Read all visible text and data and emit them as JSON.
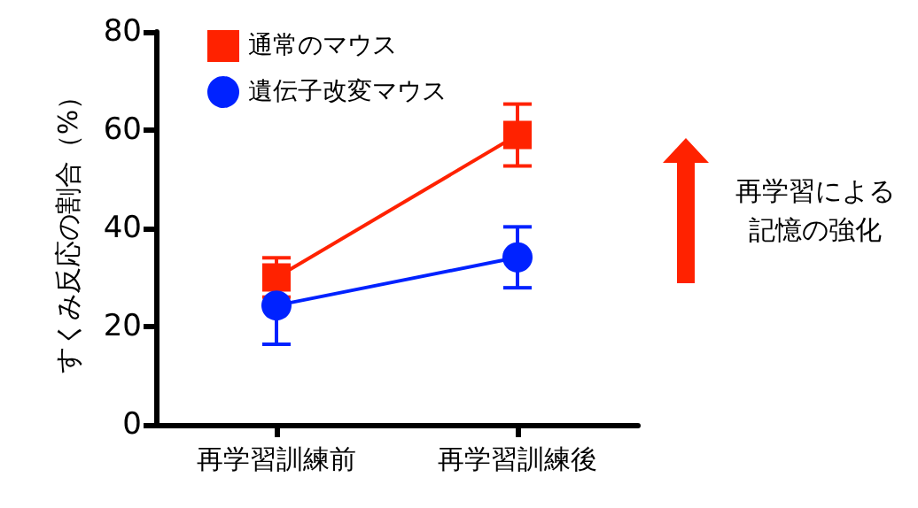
{
  "chart_data": {
    "type": "line",
    "ylabel": "すくみ反応の割合（%）",
    "categories": [
      "再学習訓練前",
      "再学習訓練後"
    ],
    "series": [
      {
        "name": "通常のマウス",
        "color": "#ff2200",
        "marker": "square",
        "values": [
          30,
          59
        ],
        "errors": [
          4,
          6.3
        ]
      },
      {
        "name": "遺伝子改変マウス",
        "color": "#0022ff",
        "marker": "circle",
        "values": [
          24.3,
          34.1
        ],
        "errors": [
          7.9,
          6.2
        ]
      }
    ],
    "ylim": [
      0,
      80
    ],
    "yticks": [
      0,
      20,
      40,
      60,
      80
    ],
    "grid": false,
    "legend": "top left",
    "line_style": "solid",
    "annotations": [
      "再学習による",
      "記憶の強化"
    ]
  }
}
